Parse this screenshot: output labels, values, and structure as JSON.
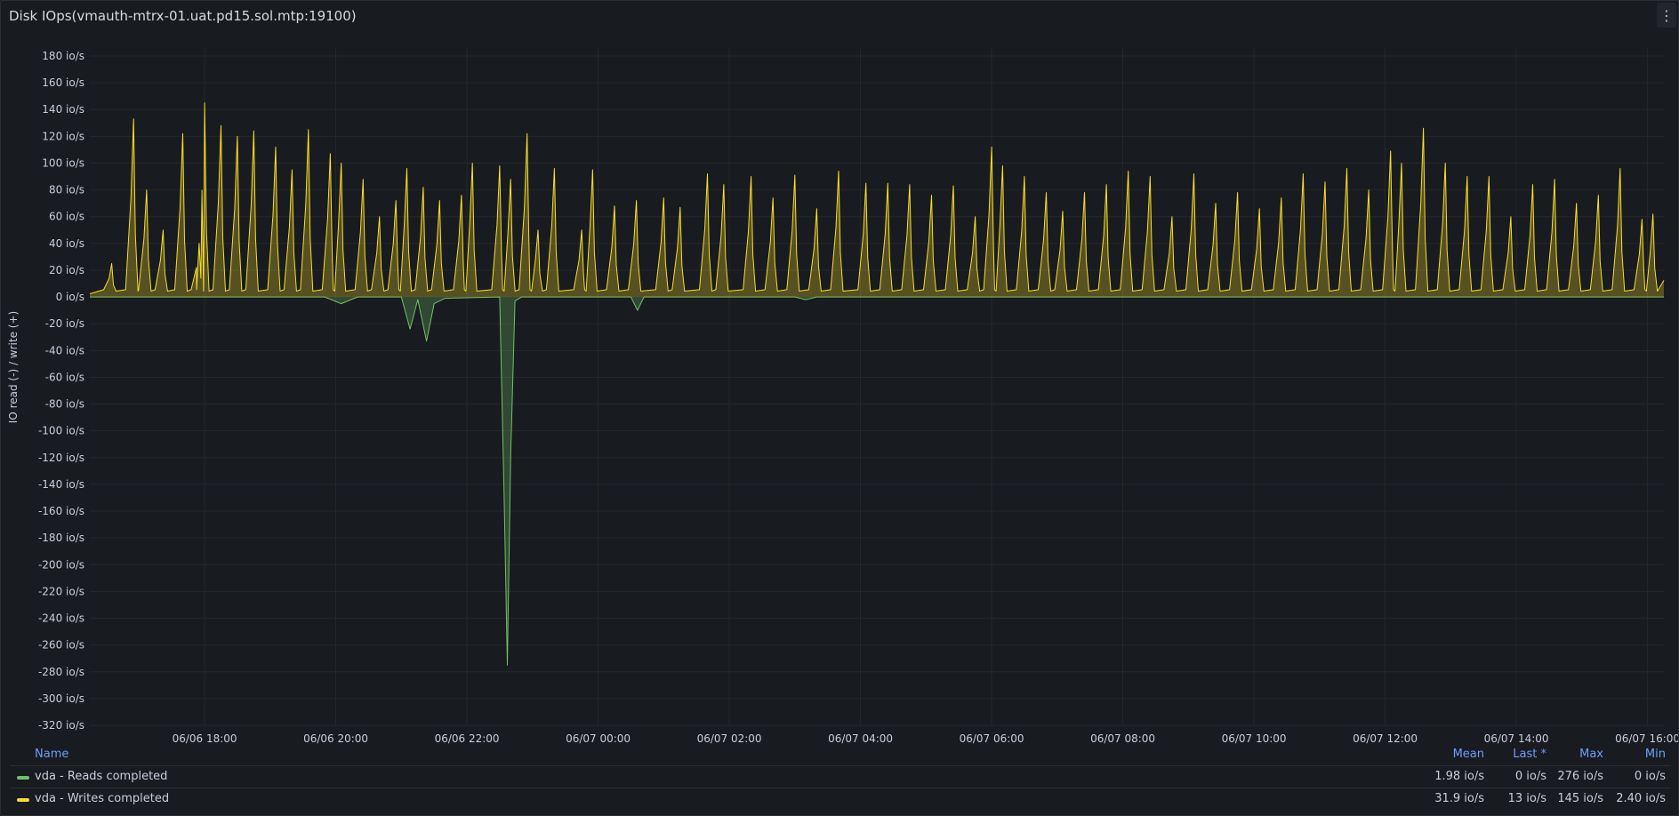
{
  "panel": {
    "title": "Disk IOps(vmauth-mtrx-01.uat.pd15.sol.mtp:19100)",
    "menu_icon": "more-vertical-icon"
  },
  "chart_data": {
    "type": "area",
    "ylabel": "IO read (-) / write (+)",
    "unit": "io/s",
    "ylim": [
      -320,
      180
    ],
    "ytick_labels": [
      "180 io/s",
      "160 io/s",
      "140 io/s",
      "120 io/s",
      "100 io/s",
      "80 io/s",
      "60 io/s",
      "40 io/s",
      "20 io/s",
      "0 io/s",
      "-20 io/s",
      "-40 io/s",
      "-60 io/s",
      "-80 io/s",
      "-100 io/s",
      "-120 io/s",
      "-140 io/s",
      "-160 io/s",
      "-180 io/s",
      "-200 io/s",
      "-220 io/s",
      "-240 io/s",
      "-260 io/s",
      "-280 io/s",
      "-300 io/s",
      "-320 io/s"
    ],
    "xrange": [
      "06/06 16:15",
      "06/07 16:15"
    ],
    "xtick_labels": [
      "06/06 18:00",
      "06/06 20:00",
      "06/06 22:00",
      "06/07 00:00",
      "06/07 02:00",
      "06/07 04:00",
      "06/07 06:00",
      "06/07 08:00",
      "06/07 10:00",
      "06/07 12:00",
      "06/07 14:00",
      "06/07 16:00"
    ],
    "grid": true,
    "legend_position": "bottom",
    "series": [
      {
        "name": "vda - Reads completed",
        "color": "#73bf69",
        "sign": "negative",
        "points": [
          [
            "06/06 16:15",
            0
          ],
          [
            "06/06 19:50",
            0
          ],
          [
            "06/06 20:05",
            -5
          ],
          [
            "06/06 20:20",
            0
          ],
          [
            "06/06 21:00",
            0
          ],
          [
            "06/06 21:08",
            -24
          ],
          [
            "06/06 21:15",
            -2
          ],
          [
            "06/06 21:23",
            -33
          ],
          [
            "06/06 21:30",
            -5
          ],
          [
            "06/06 21:40",
            -1
          ],
          [
            "06/06 22:30",
            0
          ],
          [
            "06/06 22:34",
            -150
          ],
          [
            "06/06 22:37",
            -275
          ],
          [
            "06/06 22:40",
            -120
          ],
          [
            "06/06 22:44",
            -3
          ],
          [
            "06/06 22:50",
            0
          ],
          [
            "06/07 00:30",
            0
          ],
          [
            "06/07 00:36",
            -10
          ],
          [
            "06/07 00:42",
            0
          ],
          [
            "06/07 03:00",
            0
          ],
          [
            "06/07 03:10",
            -2
          ],
          [
            "06/07 03:20",
            0
          ],
          [
            "06/07 16:15",
            0
          ]
        ]
      },
      {
        "name": "vda - Writes completed",
        "color": "#fade2a",
        "sign": "positive",
        "peaks": [
          [
            "06/06 16:35",
            25
          ],
          [
            "06/06 16:55",
            133
          ],
          [
            "06/06 17:07",
            80
          ],
          [
            "06/06 17:22",
            50
          ],
          [
            "06/06 17:40",
            122
          ],
          [
            "06/06 17:55",
            40
          ],
          [
            "06/06 18:00",
            145
          ],
          [
            "06/06 18:15",
            128
          ],
          [
            "06/06 18:30",
            120
          ],
          [
            "06/06 18:45",
            124
          ],
          [
            "06/06 19:05",
            112
          ],
          [
            "06/06 19:20",
            95
          ],
          [
            "06/06 19:35",
            125
          ],
          [
            "06/06 19:55",
            107
          ],
          [
            "06/06 20:05",
            100
          ],
          [
            "06/06 20:25",
            88
          ],
          [
            "06/06 20:40",
            60
          ],
          [
            "06/06 20:55",
            72
          ],
          [
            "06/06 21:05",
            96
          ],
          [
            "06/06 21:20",
            82
          ],
          [
            "06/06 21:35",
            72
          ],
          [
            "06/06 21:55",
            76
          ],
          [
            "06/06 22:05",
            100
          ],
          [
            "06/06 22:30",
            98
          ],
          [
            "06/06 22:40",
            88
          ],
          [
            "06/06 22:55",
            122
          ],
          [
            "06/06 23:05",
            50
          ],
          [
            "06/06 23:20",
            96
          ],
          [
            "06/06 23:45",
            50
          ],
          [
            "06/06 23:55",
            95
          ],
          [
            "06/07 00:15",
            68
          ],
          [
            "06/07 00:35",
            72
          ],
          [
            "06/07 01:00",
            74
          ],
          [
            "06/07 01:15",
            67
          ],
          [
            "06/07 01:40",
            92
          ],
          [
            "06/07 01:55",
            84
          ],
          [
            "06/07 02:20",
            90
          ],
          [
            "06/07 02:40",
            74
          ],
          [
            "06/07 03:00",
            91
          ],
          [
            "06/07 03:20",
            66
          ],
          [
            "06/07 03:40",
            94
          ],
          [
            "06/07 04:05",
            85
          ],
          [
            "06/07 04:25",
            85
          ],
          [
            "06/07 04:45",
            84
          ],
          [
            "06/07 05:05",
            76
          ],
          [
            "06/07 05:25",
            83
          ],
          [
            "06/07 05:45",
            60
          ],
          [
            "06/07 06:00",
            112
          ],
          [
            "06/07 06:10",
            98
          ],
          [
            "06/07 06:30",
            90
          ],
          [
            "06/07 06:50",
            78
          ],
          [
            "06/07 07:05",
            64
          ],
          [
            "06/07 07:25",
            78
          ],
          [
            "06/07 07:45",
            84
          ],
          [
            "06/07 08:05",
            94
          ],
          [
            "06/07 08:25",
            90
          ],
          [
            "06/07 08:45",
            60
          ],
          [
            "06/07 09:05",
            92
          ],
          [
            "06/07 09:25",
            70
          ],
          [
            "06/07 09:45",
            78
          ],
          [
            "06/07 10:05",
            66
          ],
          [
            "06/07 10:25",
            74
          ],
          [
            "06/07 10:45",
            92
          ],
          [
            "06/07 11:05",
            86
          ],
          [
            "06/07 11:25",
            96
          ],
          [
            "06/07 11:45",
            80
          ],
          [
            "06/07 12:05",
            109
          ],
          [
            "06/07 12:15",
            100
          ],
          [
            "06/07 12:35",
            126
          ],
          [
            "06/07 12:55",
            100
          ],
          [
            "06/07 13:15",
            90
          ],
          [
            "06/07 13:35",
            90
          ],
          [
            "06/07 13:55",
            60
          ],
          [
            "06/07 14:15",
            84
          ],
          [
            "06/07 14:35",
            88
          ],
          [
            "06/07 14:55",
            70
          ],
          [
            "06/07 15:15",
            76
          ],
          [
            "06/07 15:35",
            96
          ],
          [
            "06/07 15:55",
            58
          ],
          [
            "06/07 16:05",
            62
          ]
        ]
      }
    ]
  },
  "legend": {
    "headers": {
      "name": "Name",
      "mean": "Mean",
      "last": "Last *",
      "max": "Max",
      "min": "Min"
    },
    "rows": [
      {
        "name": "vda - Reads completed",
        "color": "#73bf69",
        "mean": "1.98 io/s",
        "last": "0 io/s",
        "max": "276 io/s",
        "min": "0 io/s"
      },
      {
        "name": "vda - Writes completed",
        "color": "#fade2a",
        "mean": "31.9 io/s",
        "last": "13 io/s",
        "max": "145 io/s",
        "min": "2.40 io/s"
      }
    ]
  }
}
